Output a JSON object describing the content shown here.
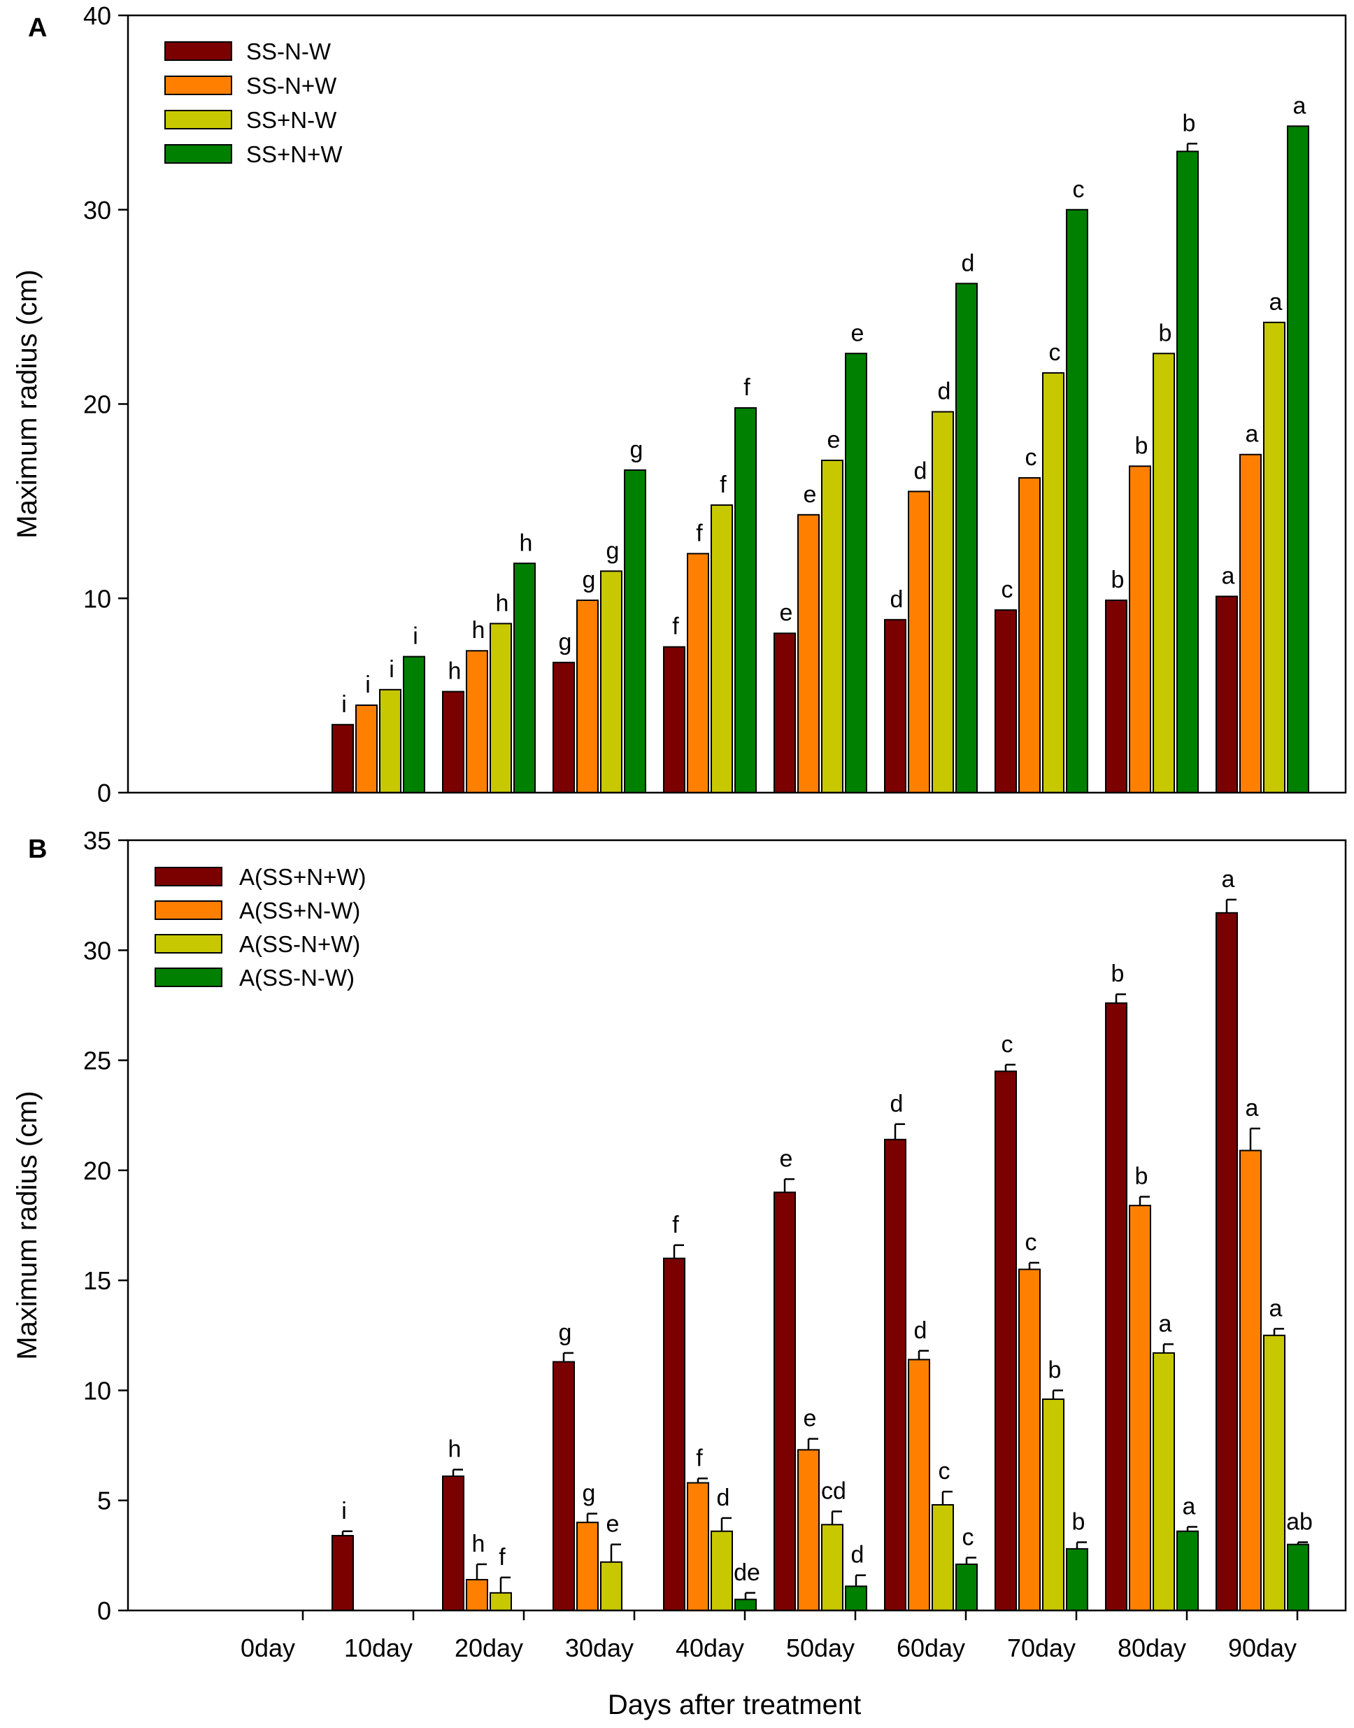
{
  "colors": {
    "dark_red": "#7B0000",
    "orange": "#FF8000",
    "yellow_green": "#C8C800",
    "green": "#008000"
  },
  "x_axis_title": "Days after treatment",
  "chart_data": [
    {
      "panel": "A",
      "type": "bar",
      "ylabel": "Maximum radius (cm)",
      "ylim": [
        0,
        40
      ],
      "yticks": [
        0,
        10,
        20,
        30,
        40
      ],
      "legend_position": "top-left",
      "categories": [
        "0day",
        "10day",
        "20day",
        "30day",
        "40day",
        "50day",
        "60day",
        "70day",
        "80day",
        "90day"
      ],
      "series": [
        {
          "name": "SS-N-W",
          "color": "#7B0000",
          "values": [
            0,
            3.5,
            5.2,
            6.7,
            7.5,
            8.2,
            8.9,
            9.4,
            9.9,
            10.1
          ],
          "errors": [
            0,
            0,
            0,
            0,
            0,
            0,
            0,
            0,
            0,
            0
          ],
          "labels": [
            "",
            "i",
            "h",
            "g",
            "f",
            "e",
            "d",
            "c",
            "b",
            "a"
          ]
        },
        {
          "name": "SS-N+W",
          "color": "#FF8000",
          "values": [
            0,
            4.5,
            7.3,
            9.9,
            12.3,
            14.3,
            15.5,
            16.2,
            16.8,
            17.4
          ],
          "errors": [
            0,
            0,
            0,
            0,
            0,
            0,
            0,
            0,
            0,
            0
          ],
          "labels": [
            "",
            "i",
            "h",
            "g",
            "f",
            "e",
            "d",
            "c",
            "b",
            "a"
          ]
        },
        {
          "name": "SS+N-W",
          "color": "#C8C800",
          "values": [
            0,
            5.3,
            8.7,
            11.4,
            14.8,
            17.1,
            19.6,
            21.6,
            22.6,
            24.2
          ],
          "errors": [
            0,
            0,
            0,
            0,
            0,
            0,
            0,
            0,
            0,
            0
          ],
          "labels": [
            "",
            "i",
            "h",
            "g",
            "f",
            "e",
            "d",
            "c",
            "b",
            "a"
          ]
        },
        {
          "name": "SS+N+W",
          "color": "#008000",
          "values": [
            0,
            7.0,
            11.8,
            16.6,
            19.8,
            22.6,
            26.2,
            30.0,
            33.0,
            34.3
          ],
          "errors": [
            0,
            0,
            0,
            0,
            0,
            0,
            0,
            0,
            0.4,
            0
          ],
          "labels": [
            "",
            "i",
            "h",
            "g",
            "f",
            "e",
            "d",
            "c",
            "b",
            "a"
          ]
        }
      ]
    },
    {
      "panel": "B",
      "type": "bar",
      "ylabel": "Maximum radius (cm)",
      "xlabel": "Days after treatment",
      "ylim": [
        0,
        35
      ],
      "yticks": [
        0,
        5,
        10,
        15,
        20,
        25,
        30,
        35
      ],
      "legend_position": "top-left",
      "categories": [
        "0day",
        "10day",
        "20day",
        "30day",
        "40day",
        "50day",
        "60day",
        "70day",
        "80day",
        "90day"
      ],
      "series": [
        {
          "name": "A(SS+N+W)",
          "color": "#7B0000",
          "values": [
            0,
            3.4,
            6.1,
            11.3,
            16.0,
            19.0,
            21.4,
            24.5,
            27.6,
            31.7
          ],
          "errors": [
            0,
            0.2,
            0.3,
            0.4,
            0.6,
            0.6,
            0.7,
            0.3,
            0.4,
            0.6
          ],
          "labels": [
            "",
            "i",
            "h",
            "g",
            "f",
            "e",
            "d",
            "c",
            "b",
            "a"
          ]
        },
        {
          "name": "A(SS+N-W)",
          "color": "#FF8000",
          "values": [
            0,
            0,
            1.4,
            4.0,
            5.8,
            7.3,
            11.4,
            15.5,
            18.4,
            20.9
          ],
          "errors": [
            0,
            0,
            0.7,
            0.4,
            0.2,
            0.5,
            0.4,
            0.3,
            0.4,
            1.0
          ],
          "labels": [
            "",
            "",
            "h",
            "g",
            "f",
            "e",
            "d",
            "c",
            "b",
            "a"
          ]
        },
        {
          "name": "A(SS-N+W)",
          "color": "#C8C800",
          "values": [
            0,
            0,
            0.8,
            2.2,
            3.6,
            3.9,
            4.8,
            9.6,
            11.7,
            12.5
          ],
          "errors": [
            0,
            0,
            0.7,
            0.8,
            0.6,
            0.6,
            0.6,
            0.4,
            0.4,
            0.3
          ],
          "labels": [
            "",
            "",
            "f",
            "e",
            "d",
            "cd",
            "c",
            "b",
            "a",
            "a"
          ]
        },
        {
          "name": "A(SS-N-W)",
          "color": "#008000",
          "values": [
            0,
            0,
            0,
            0,
            0.5,
            1.1,
            2.1,
            2.8,
            3.6,
            3.0
          ],
          "errors": [
            0,
            0,
            0,
            0,
            0.3,
            0.5,
            0.3,
            0.3,
            0.2,
            0.1
          ],
          "labels": [
            "",
            "",
            "",
            "",
            "de",
            "d",
            "c",
            "b",
            "a",
            "ab"
          ]
        }
      ]
    }
  ]
}
